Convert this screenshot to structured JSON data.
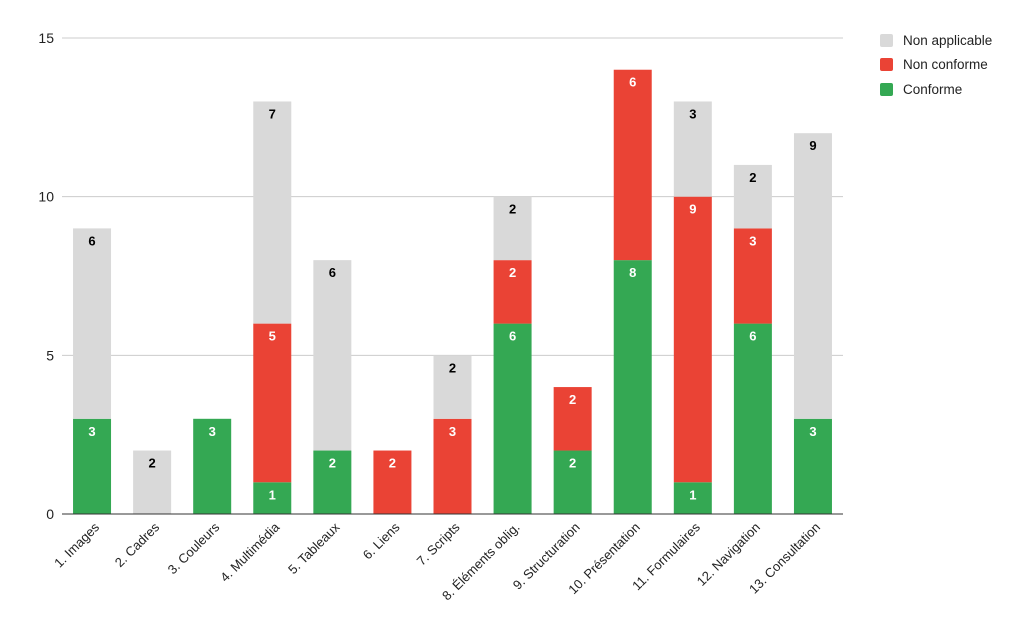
{
  "chart_data": {
    "type": "bar",
    "stacked": true,
    "title": "",
    "xlabel": "",
    "ylabel": "",
    "ylim": [
      0,
      15
    ],
    "yticks": [
      0,
      5,
      10,
      15
    ],
    "grid": true,
    "legend_position": "top-right",
    "categories": [
      "1. Images",
      "2. Cadres",
      "3. Couleurs",
      "4. Multimédia",
      "5. Tableaux",
      "6. Liens",
      "7. Scripts",
      "8. Éléments oblig.",
      "9. Structuration",
      "10. Présentation",
      "11. Formulaires",
      "12. Navigation",
      "13. Consultation"
    ],
    "series": [
      {
        "name": "Conforme",
        "color": "#34a853",
        "label_color": "#ffffff",
        "values": [
          3,
          0,
          3,
          1,
          2,
          0,
          0,
          6,
          2,
          8,
          1,
          6,
          3
        ]
      },
      {
        "name": "Non conforme",
        "color": "#ea4335",
        "label_color": "#ffffff",
        "values": [
          0,
          0,
          0,
          5,
          0,
          2,
          3,
          2,
          2,
          6,
          9,
          3,
          0
        ]
      },
      {
        "name": "Non applicable",
        "color": "#d9d9d9",
        "label_color": "#000000",
        "values": [
          6,
          2,
          0,
          7,
          6,
          0,
          2,
          2,
          0,
          0,
          3,
          2,
          9
        ]
      }
    ],
    "legend_order": [
      "Non applicable",
      "Non conforme",
      "Conforme"
    ]
  }
}
